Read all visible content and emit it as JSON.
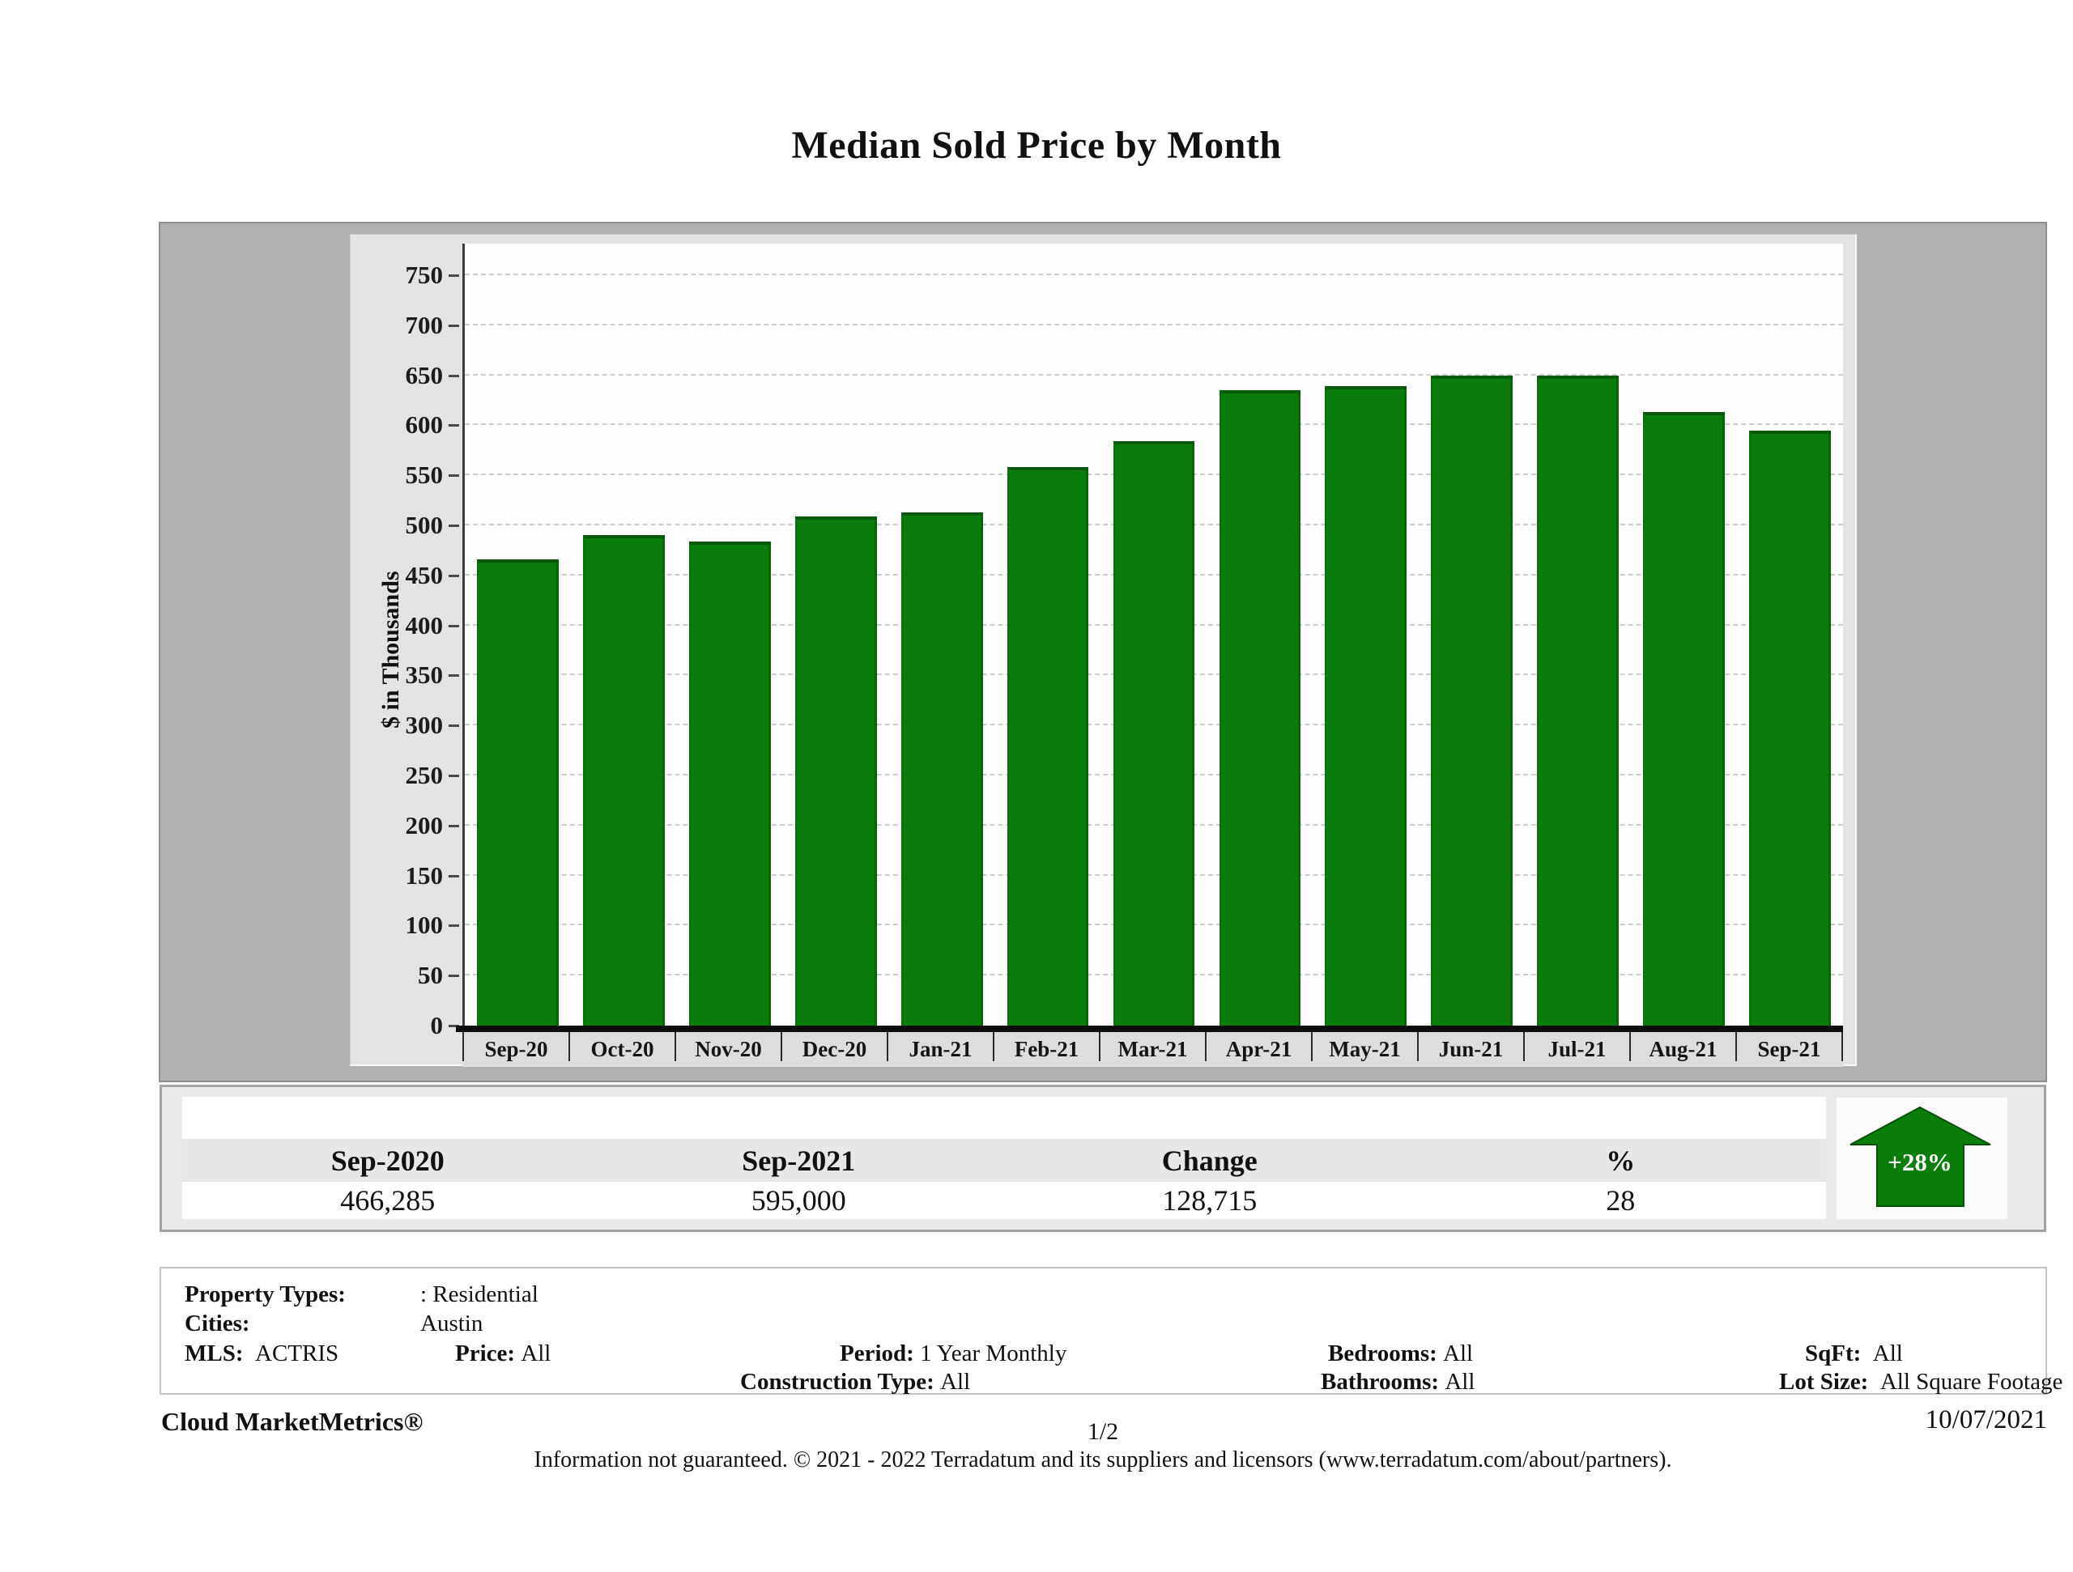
{
  "title": "Median Sold Price by Month",
  "chart_data": {
    "type": "bar",
    "title": "Median Sold Price by Month",
    "xlabel": "",
    "ylabel": "$ in Thousands",
    "categories": [
      "Sep-20",
      "Oct-20",
      "Nov-20",
      "Dec-20",
      "Jan-21",
      "Feb-21",
      "Mar-21",
      "Apr-21",
      "May-21",
      "Jun-21",
      "Jul-21",
      "Aug-21",
      "Sep-21"
    ],
    "values": [
      466,
      490,
      484,
      509,
      513,
      558,
      584,
      635,
      639,
      650,
      650,
      613,
      595
    ],
    "ylim": [
      0,
      750
    ],
    "y_ticks": [
      0,
      50,
      100,
      150,
      200,
      250,
      300,
      350,
      400,
      450,
      500,
      550,
      600,
      650,
      700,
      750
    ],
    "grid": true,
    "legend": "none",
    "bar_color": "#0A7C0C"
  },
  "summary_table": {
    "columns": [
      "Sep-2020",
      "Sep-2021",
      "Change",
      "%"
    ],
    "values": [
      "466,285",
      "595,000",
      "128,715",
      "28"
    ]
  },
  "trend_badge": {
    "label": "+28%",
    "direction": "up",
    "color": "#0B7D0B"
  },
  "filters": {
    "property_types_label": "Property Types:",
    "property_types": ": Residential",
    "cities_label": "Cities:",
    "cities": "Austin",
    "mls_label": "MLS:",
    "mls": "ACTRIS",
    "price_label": "Price:",
    "price": "All",
    "period_label": "Period:",
    "period": "1 Year Monthly",
    "bedrooms_label": "Bedrooms:",
    "bedrooms": "All",
    "sqft_label": "SqFt:",
    "sqft": "All",
    "construction_label": "Construction Type:",
    "construction": "All",
    "bathrooms_label": "Bathrooms:",
    "bathrooms": "All",
    "lot_size_label": "Lot Size:",
    "lot_size": "All Square Footage"
  },
  "footer": {
    "brand": "Cloud MarketMetrics®",
    "page": "1/2",
    "date": "10/07/2021",
    "disclaimer": "Information not guaranteed. © 2021 - 2022 Terradatum and its suppliers and licensors (www.terradatum.com/about/partners)."
  }
}
